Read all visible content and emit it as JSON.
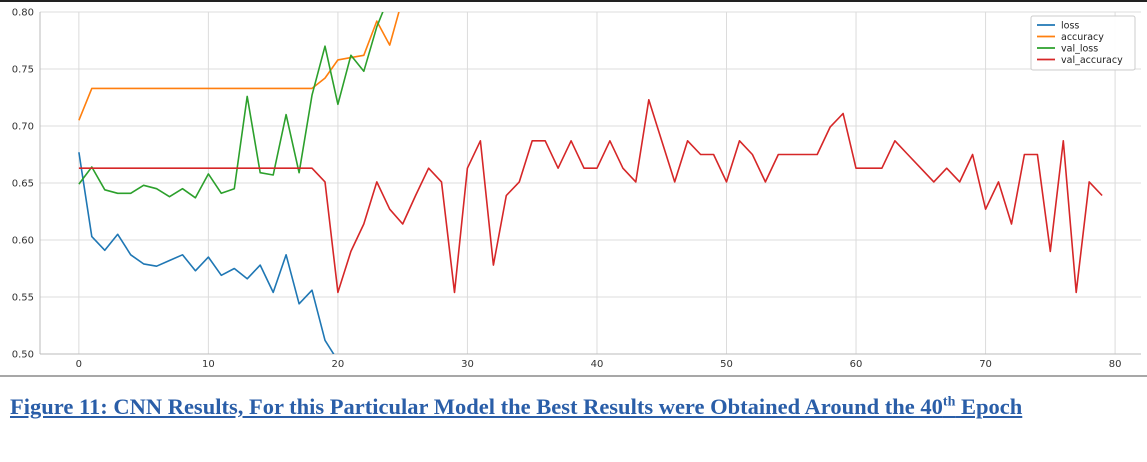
{
  "chart_data": {
    "type": "line",
    "xlim": [
      -3,
      82
    ],
    "ylim": [
      0.5,
      0.8
    ],
    "xticks": [
      0,
      10,
      20,
      30,
      40,
      50,
      60,
      70,
      80
    ],
    "yticks": [
      "0.50",
      "0.55",
      "0.60",
      "0.65",
      "0.70",
      "0.75",
      "0.80"
    ],
    "grid": true,
    "legend_position": "top-right",
    "series": [
      {
        "name": "loss",
        "color": "#1f77b4",
        "x": [
          0,
          1,
          2,
          3,
          4,
          5,
          6,
          7,
          8,
          9,
          10,
          11,
          12,
          13,
          14,
          15,
          16,
          17,
          18,
          19,
          20
        ],
        "y": [
          0.677,
          0.603,
          0.591,
          0.605,
          0.587,
          0.579,
          0.577,
          0.582,
          0.587,
          0.573,
          0.585,
          0.569,
          0.575,
          0.566,
          0.578,
          0.554,
          0.587,
          0.544,
          0.556,
          0.512,
          0.494
        ]
      },
      {
        "name": "accuracy",
        "color": "#ff7f0e",
        "x": [
          0,
          1,
          2,
          3,
          4,
          5,
          6,
          7,
          8,
          9,
          10,
          11,
          12,
          13,
          14,
          15,
          16,
          17,
          18,
          19,
          20,
          21,
          22,
          23,
          24,
          25
        ],
        "y": [
          0.705,
          0.733,
          0.733,
          0.733,
          0.733,
          0.733,
          0.733,
          0.733,
          0.733,
          0.733,
          0.733,
          0.733,
          0.733,
          0.733,
          0.733,
          0.733,
          0.733,
          0.733,
          0.733,
          0.742,
          0.758,
          0.76,
          0.762,
          0.792,
          0.771,
          0.812
        ]
      },
      {
        "name": "val_loss",
        "color": "#2ca02c",
        "x": [
          0,
          1,
          2,
          3,
          4,
          5,
          6,
          7,
          8,
          9,
          10,
          11,
          12,
          13,
          14,
          15,
          16,
          17,
          18,
          19,
          20,
          21,
          22,
          23,
          24
        ],
        "y": [
          0.649,
          0.664,
          0.644,
          0.641,
          0.641,
          0.648,
          0.645,
          0.638,
          0.645,
          0.637,
          0.658,
          0.641,
          0.645,
          0.726,
          0.659,
          0.657,
          0.71,
          0.659,
          0.727,
          0.77,
          0.719,
          0.762,
          0.748,
          0.787,
          0.815
        ]
      },
      {
        "name": "val_accuracy",
        "color": "#d62728",
        "x": [
          0,
          1,
          2,
          3,
          4,
          5,
          6,
          7,
          8,
          9,
          10,
          11,
          12,
          13,
          14,
          15,
          16,
          17,
          18,
          19,
          20,
          21,
          22,
          23,
          24,
          25,
          26,
          27,
          28,
          29,
          30,
          31,
          32,
          33,
          34,
          35,
          36,
          37,
          38,
          39,
          40,
          41,
          42,
          43,
          44,
          45,
          46,
          47,
          48,
          49,
          50,
          51,
          52,
          53,
          54,
          55,
          56,
          57,
          58,
          59,
          60,
          61,
          62,
          63,
          64,
          65,
          66,
          67,
          68,
          69,
          70,
          71,
          72,
          73,
          74,
          75,
          76,
          77,
          78,
          79
        ],
        "y": [
          0.663,
          0.663,
          0.663,
          0.663,
          0.663,
          0.663,
          0.663,
          0.663,
          0.663,
          0.663,
          0.663,
          0.663,
          0.663,
          0.663,
          0.663,
          0.663,
          0.663,
          0.663,
          0.663,
          0.651,
          0.554,
          0.59,
          0.614,
          0.651,
          0.627,
          0.614,
          0.639,
          0.663,
          0.651,
          0.554,
          0.663,
          0.687,
          0.578,
          0.639,
          0.651,
          0.687,
          0.687,
          0.663,
          0.687,
          0.663,
          0.663,
          0.687,
          0.663,
          0.651,
          0.723,
          0.687,
          0.651,
          0.687,
          0.675,
          0.675,
          0.651,
          0.687,
          0.675,
          0.651,
          0.675,
          0.675,
          0.675,
          0.675,
          0.699,
          0.711,
          0.663,
          0.663,
          0.663,
          0.687,
          0.675,
          0.663,
          0.651,
          0.663,
          0.651,
          0.675,
          0.627,
          0.651,
          0.614,
          0.675,
          0.675,
          0.59,
          0.687,
          0.554,
          0.651,
          0.639
        ]
      }
    ]
  },
  "caption": {
    "text_before": "Figure 11: CNN Results, For this Particular Model the Best Results were Obtained Around the 40",
    "superscript": "th",
    "text_after": " Epoch"
  }
}
